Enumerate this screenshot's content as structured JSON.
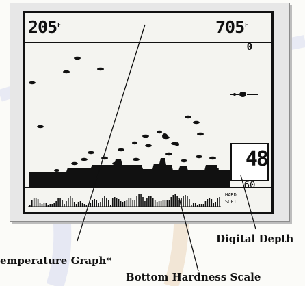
{
  "display": {
    "temp_left": "205",
    "temp_right": "705",
    "range_top": "0",
    "digital_depth": "48",
    "range_bottom": "60",
    "hard_label": "HARD",
    "soft_label": "SOFT"
  },
  "callouts": {
    "temperature_graph": "emperature Graph*",
    "digital_depth": "Digital Depth",
    "bottom_hardness": "Bottom Hardness Scale"
  }
}
